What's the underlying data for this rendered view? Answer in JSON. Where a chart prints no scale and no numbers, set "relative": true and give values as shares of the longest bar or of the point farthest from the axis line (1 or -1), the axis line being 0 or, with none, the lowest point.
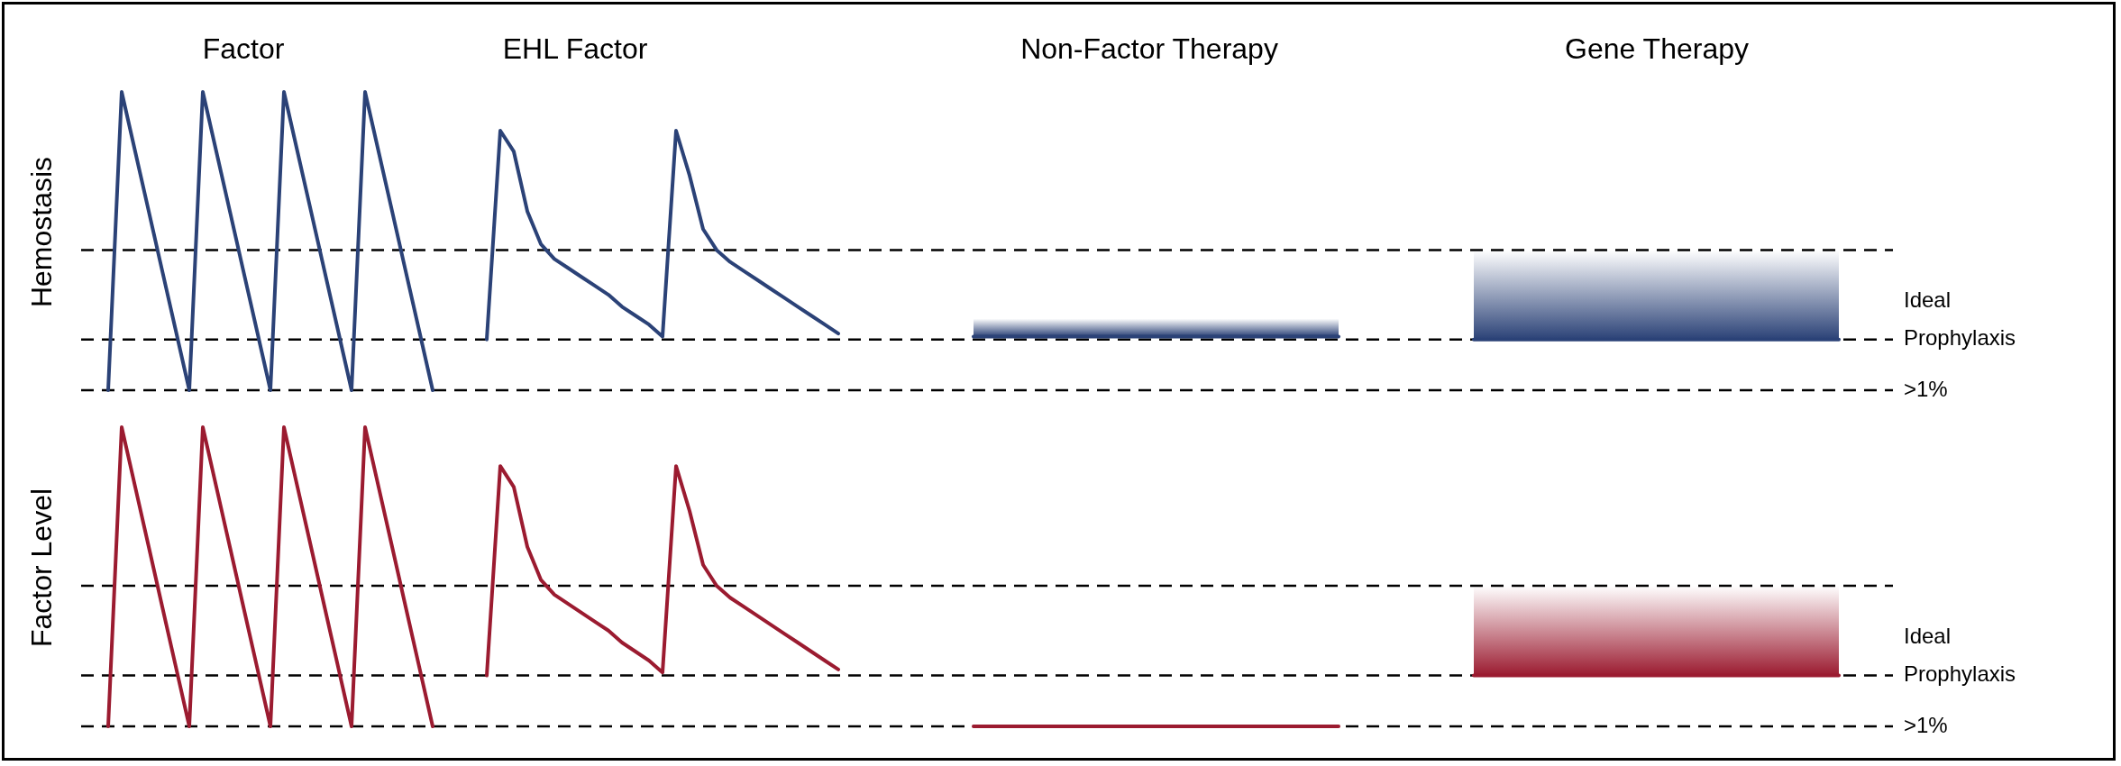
{
  "chart_data": [
    {
      "type": "line",
      "relative": true,
      "ylabel": "Hemostasis",
      "grid": false,
      "legend": false,
      "marker": "none",
      "line_style": "solid",
      "annotations": [
        "Factor",
        "EHL Factor",
        "Non-Factor Therapy",
        "Gene Therapy",
        ">1%"
      ],
      "categories": [
        null,
        null,
        null,
        null,
        null,
        null,
        null,
        null,
        null,
        null,
        null,
        null,
        null,
        null,
        null,
        null,
        null,
        null,
        null,
        null,
        null,
        null,
        null,
        null,
        null,
        null,
        null,
        null,
        null,
        null,
        null,
        null,
        null,
        null,
        null,
        null,
        null,
        null,
        null,
        null,
        null,
        null,
        null,
        null,
        null,
        null,
        null,
        null,
        null,
        null,
        null,
        null,
        null,
        null,
        null,
        null,
        null,
        null,
        null,
        null,
        null,
        null,
        null,
        null,
        null,
        null,
        null,
        null,
        null,
        null,
        null,
        null,
        null,
        null,
        null,
        null,
        null,
        null,
        null,
        null,
        null,
        null,
        null,
        null,
        null,
        null,
        null,
        null,
        null,
        null,
        null,
        null,
        null,
        null,
        null,
        null,
        null,
        null,
        null,
        null,
        null,
        null,
        null,
        null,
        null,
        null,
        null,
        null,
        null,
        null,
        null,
        null,
        null,
        null,
        null,
        null,
        null,
        null,
        null,
        null,
        null,
        null,
        null,
        null,
        null,
        null,
        null,
        null,
        null,
        null,
        null,
        null,
        null,
        null
      ],
      "ref_lines": [
        {
          "axis": "y",
          "value": 0,
          "color": "#000000",
          "line_style": "dashed"
        },
        {
          "axis": "y",
          "value": 0.17,
          "label": "Ideal Prophylaxis",
          "color": "#000000",
          "line_style": "dashed"
        },
        {
          "axis": "y",
          "value": 0.47,
          "color": "#000000",
          "line_style": "dashed"
        }
      ],
      "series": [
        {
          "color": "#2b4277",
          "values": [
            null,
            0,
            1,
            0.8,
            0.6,
            0.4,
            0.2,
            0,
            1,
            0.8,
            0.6,
            0.4,
            0.2,
            0,
            1,
            0.8,
            0.6,
            0.4,
            0.2,
            0,
            1,
            0.8,
            0.6,
            0.4,
            0.2,
            0,
            null,
            null,
            null,
            null,
            null,
            null,
            null,
            null,
            null,
            null,
            null,
            null,
            null,
            null,
            null,
            null,
            null,
            null,
            null,
            null,
            null,
            null,
            null,
            null,
            null,
            null,
            null,
            null,
            null,
            null,
            null,
            null,
            null,
            null,
            null,
            null,
            null,
            null,
            null,
            null,
            null,
            null,
            null,
            null,
            null,
            null,
            null,
            null,
            null,
            null,
            null,
            null,
            null,
            null,
            null,
            null,
            null,
            null,
            null,
            null,
            null,
            null,
            null,
            null,
            null,
            null,
            null,
            null,
            null,
            null,
            null,
            null,
            null,
            null,
            null,
            null,
            null,
            null,
            null,
            null,
            null,
            null,
            null,
            null,
            null,
            null,
            null,
            null,
            null,
            null,
            null,
            null,
            null,
            null,
            null,
            null,
            null,
            null,
            null,
            null,
            null,
            null,
            null,
            null,
            null,
            null,
            null,
            null
          ]
        },
        {
          "color": "#2b4277",
          "values": [
            null,
            null,
            null,
            null,
            null,
            null,
            null,
            null,
            null,
            null,
            null,
            null,
            null,
            null,
            null,
            null,
            null,
            null,
            null,
            null,
            null,
            null,
            null,
            null,
            null,
            null,
            null,
            null,
            null,
            0.17,
            0.87,
            0.8,
            0.6,
            0.49,
            0.44,
            0.41,
            0.38,
            0.35,
            0.32,
            0.28,
            0.25,
            0.22,
            0.18,
            0.87,
            0.72,
            0.54,
            0.47,
            0.43,
            0.4,
            0.37,
            0.34,
            0.31,
            0.28,
            0.25,
            0.22,
            0.19,
            null,
            null,
            null,
            null,
            null,
            null,
            null,
            null,
            null,
            null,
            null,
            null,
            null,
            null,
            null,
            null,
            null,
            null,
            null,
            null,
            null,
            null,
            null,
            null,
            null,
            null,
            null,
            null,
            null,
            null,
            null,
            null,
            null,
            null,
            null,
            null,
            null,
            null,
            null,
            null,
            null,
            null,
            null,
            null,
            null,
            null,
            null,
            null,
            null,
            null,
            null,
            null,
            null,
            null,
            null,
            null,
            null,
            null,
            null,
            null,
            null,
            null,
            null,
            null,
            null,
            null,
            null,
            null,
            null,
            null,
            null,
            null,
            null,
            null,
            null,
            null,
            null,
            null
          ]
        },
        {
          "color": "#2b4277",
          "values": [
            null,
            null,
            null,
            null,
            null,
            null,
            null,
            null,
            null,
            null,
            null,
            null,
            null,
            null,
            null,
            null,
            null,
            null,
            null,
            null,
            null,
            null,
            null,
            null,
            null,
            null,
            null,
            null,
            null,
            null,
            null,
            null,
            null,
            null,
            null,
            null,
            null,
            null,
            null,
            null,
            null,
            null,
            null,
            null,
            null,
            null,
            null,
            null,
            null,
            null,
            null,
            null,
            null,
            null,
            null,
            null,
            null,
            null,
            null,
            null,
            null,
            null,
            null,
            null,
            null,
            0.18,
            0.18,
            0.18,
            0.18,
            0.18,
            0.18,
            0.18,
            0.18,
            0.18,
            0.18,
            0.18,
            0.18,
            0.18,
            0.18,
            0.18,
            0.18,
            0.18,
            0.18,
            0.18,
            0.18,
            0.18,
            0.18,
            0.18,
            0.18,
            0.18,
            0.18,
            0.18,
            0.18,
            null,
            null,
            null,
            null,
            null,
            null,
            null,
            null,
            null,
            null,
            null,
            null,
            null,
            null,
            null,
            null,
            null,
            null,
            null,
            null,
            null,
            null,
            null,
            null,
            null,
            null,
            null,
            null,
            null,
            null,
            null,
            null,
            null,
            null,
            null,
            null,
            null,
            null,
            null,
            null,
            null
          ],
          "lower": [
            null,
            null,
            null,
            null,
            null,
            null,
            null,
            null,
            null,
            null,
            null,
            null,
            null,
            null,
            null,
            null,
            null,
            null,
            null,
            null,
            null,
            null,
            null,
            null,
            null,
            null,
            null,
            null,
            null,
            null,
            null,
            null,
            null,
            null,
            null,
            null,
            null,
            null,
            null,
            null,
            null,
            null,
            null,
            null,
            null,
            null,
            null,
            null,
            null,
            null,
            null,
            null,
            null,
            null,
            null,
            null,
            null,
            null,
            null,
            null,
            null,
            null,
            null,
            null,
            null,
            0.18,
            0.18,
            0.18,
            0.18,
            0.18,
            0.18,
            0.18,
            0.18,
            0.18,
            0.18,
            0.18,
            0.18,
            0.18,
            0.18,
            0.18,
            0.18,
            0.18,
            0.18,
            0.18,
            0.18,
            0.18,
            0.18,
            0.18,
            0.18,
            0.18,
            0.18,
            0.18,
            0.18,
            null,
            null,
            null,
            null,
            null,
            null,
            null,
            null,
            null,
            null,
            null,
            null,
            null,
            null,
            null,
            null,
            null,
            null,
            null,
            null,
            null,
            null,
            null,
            null,
            null,
            null,
            null,
            null,
            null,
            null,
            null,
            null,
            null,
            null,
            null,
            null,
            null,
            null,
            null,
            null,
            null
          ],
          "upper": [
            null,
            null,
            null,
            null,
            null,
            null,
            null,
            null,
            null,
            null,
            null,
            null,
            null,
            null,
            null,
            null,
            null,
            null,
            null,
            null,
            null,
            null,
            null,
            null,
            null,
            null,
            null,
            null,
            null,
            null,
            null,
            null,
            null,
            null,
            null,
            null,
            null,
            null,
            null,
            null,
            null,
            null,
            null,
            null,
            null,
            null,
            null,
            null,
            null,
            null,
            null,
            null,
            null,
            null,
            null,
            null,
            null,
            null,
            null,
            null,
            null,
            null,
            null,
            null,
            null,
            0.24,
            0.24,
            0.24,
            0.24,
            0.24,
            0.24,
            0.24,
            0.24,
            0.24,
            0.24,
            0.24,
            0.24,
            0.24,
            0.24,
            0.24,
            0.24,
            0.24,
            0.24,
            0.24,
            0.24,
            0.24,
            0.24,
            0.24,
            0.24,
            0.24,
            0.24,
            0.24,
            0.24,
            null,
            null,
            null,
            null,
            null,
            null,
            null,
            null,
            null,
            null,
            null,
            null,
            null,
            null,
            null,
            null,
            null,
            null,
            null,
            null,
            null,
            null,
            null,
            null,
            null,
            null,
            null,
            null,
            null,
            null,
            null,
            null,
            null,
            null,
            null,
            null,
            null,
            null,
            null,
            null,
            null
          ]
        },
        {
          "color": "#2b4277",
          "values": [
            null,
            null,
            null,
            null,
            null,
            null,
            null,
            null,
            null,
            null,
            null,
            null,
            null,
            null,
            null,
            null,
            null,
            null,
            null,
            null,
            null,
            null,
            null,
            null,
            null,
            null,
            null,
            null,
            null,
            null,
            null,
            null,
            null,
            null,
            null,
            null,
            null,
            null,
            null,
            null,
            null,
            null,
            null,
            null,
            null,
            null,
            null,
            null,
            null,
            null,
            null,
            null,
            null,
            null,
            null,
            null,
            null,
            null,
            null,
            null,
            null,
            null,
            null,
            null,
            null,
            null,
            null,
            null,
            null,
            null,
            null,
            null,
            null,
            null,
            null,
            null,
            null,
            null,
            null,
            null,
            null,
            null,
            null,
            null,
            null,
            null,
            null,
            null,
            null,
            null,
            null,
            null,
            null,
            null,
            null,
            null,
            null,
            null,
            null,
            null,
            null,
            null,
            0.17,
            0.17,
            0.17,
            0.17,
            0.17,
            0.17,
            0.17,
            0.17,
            0.17,
            0.17,
            0.17,
            0.17,
            0.17,
            0.17,
            0.17,
            0.17,
            0.17,
            0.17,
            0.17,
            0.17,
            0.17,
            0.17,
            0.17,
            0.17,
            0.17,
            0.17,
            0.17,
            0.17,
            null,
            null,
            null,
            null
          ],
          "lower": [
            null,
            null,
            null,
            null,
            null,
            null,
            null,
            null,
            null,
            null,
            null,
            null,
            null,
            null,
            null,
            null,
            null,
            null,
            null,
            null,
            null,
            null,
            null,
            null,
            null,
            null,
            null,
            null,
            null,
            null,
            null,
            null,
            null,
            null,
            null,
            null,
            null,
            null,
            null,
            null,
            null,
            null,
            null,
            null,
            null,
            null,
            null,
            null,
            null,
            null,
            null,
            null,
            null,
            null,
            null,
            null,
            null,
            null,
            null,
            null,
            null,
            null,
            null,
            null,
            null,
            null,
            null,
            null,
            null,
            null,
            null,
            null,
            null,
            null,
            null,
            null,
            null,
            null,
            null,
            null,
            null,
            null,
            null,
            null,
            null,
            null,
            null,
            null,
            null,
            null,
            null,
            null,
            null,
            null,
            null,
            null,
            null,
            null,
            null,
            null,
            null,
            null,
            0.17,
            0.17,
            0.17,
            0.17,
            0.17,
            0.17,
            0.17,
            0.17,
            0.17,
            0.17,
            0.17,
            0.17,
            0.17,
            0.17,
            0.17,
            0.17,
            0.17,
            0.17,
            0.17,
            0.17,
            0.17,
            0.17,
            0.17,
            0.17,
            0.17,
            0.17,
            0.17,
            0.17,
            null,
            null,
            null,
            null
          ],
          "upper": [
            null,
            null,
            null,
            null,
            null,
            null,
            null,
            null,
            null,
            null,
            null,
            null,
            null,
            null,
            null,
            null,
            null,
            null,
            null,
            null,
            null,
            null,
            null,
            null,
            null,
            null,
            null,
            null,
            null,
            null,
            null,
            null,
            null,
            null,
            null,
            null,
            null,
            null,
            null,
            null,
            null,
            null,
            null,
            null,
            null,
            null,
            null,
            null,
            null,
            null,
            null,
            null,
            null,
            null,
            null,
            null,
            null,
            null,
            null,
            null,
            null,
            null,
            null,
            null,
            null,
            null,
            null,
            null,
            null,
            null,
            null,
            null,
            null,
            null,
            null,
            null,
            null,
            null,
            null,
            null,
            null,
            null,
            null,
            null,
            null,
            null,
            null,
            null,
            null,
            null,
            null,
            null,
            null,
            null,
            null,
            null,
            null,
            null,
            null,
            null,
            null,
            null,
            0.47,
            0.47,
            0.47,
            0.47,
            0.47,
            0.47,
            0.47,
            0.47,
            0.47,
            0.47,
            0.47,
            0.47,
            0.47,
            0.47,
            0.47,
            0.47,
            0.47,
            0.47,
            0.47,
            0.47,
            0.47,
            0.47,
            0.47,
            0.47,
            0.47,
            0.47,
            0.47,
            0.47,
            null,
            null,
            null,
            null
          ]
        }
      ]
    },
    {
      "type": "line",
      "relative": true,
      "ylabel": "Factor Level",
      "grid": false,
      "legend": false,
      "marker": "none",
      "line_style": "solid",
      "annotations": [
        ">1%"
      ],
      "categories": [
        null,
        null,
        null,
        null,
        null,
        null,
        null,
        null,
        null,
        null,
        null,
        null,
        null,
        null,
        null,
        null,
        null,
        null,
        null,
        null,
        null,
        null,
        null,
        null,
        null,
        null,
        null,
        null,
        null,
        null,
        null,
        null,
        null,
        null,
        null,
        null,
        null,
        null,
        null,
        null,
        null,
        null,
        null,
        null,
        null,
        null,
        null,
        null,
        null,
        null,
        null,
        null,
        null,
        null,
        null,
        null,
        null,
        null,
        null,
        null,
        null,
        null,
        null,
        null,
        null,
        null,
        null,
        null,
        null,
        null,
        null,
        null,
        null,
        null,
        null,
        null,
        null,
        null,
        null,
        null,
        null,
        null,
        null,
        null,
        null,
        null,
        null,
        null,
        null,
        null,
        null,
        null,
        null,
        null,
        null,
        null,
        null,
        null,
        null,
        null,
        null,
        null,
        null,
        null,
        null,
        null,
        null,
        null,
        null,
        null,
        null,
        null,
        null,
        null,
        null,
        null,
        null,
        null,
        null,
        null,
        null,
        null,
        null,
        null,
        null,
        null,
        null,
        null,
        null,
        null,
        null,
        null,
        null,
        null
      ],
      "ref_lines": [
        {
          "axis": "y",
          "value": 0,
          "color": "#000000",
          "line_style": "dashed"
        },
        {
          "axis": "y",
          "value": 0.17,
          "label": "Ideal Prophylaxis",
          "color": "#000000",
          "line_style": "dashed"
        },
        {
          "axis": "y",
          "value": 0.47,
          "color": "#000000",
          "line_style": "dashed"
        }
      ],
      "series": [
        {
          "color": "#9b1b30",
          "values": [
            null,
            0,
            1,
            0.8,
            0.6,
            0.4,
            0.2,
            0,
            1,
            0.8,
            0.6,
            0.4,
            0.2,
            0,
            1,
            0.8,
            0.6,
            0.4,
            0.2,
            0,
            1,
            0.8,
            0.6,
            0.4,
            0.2,
            0,
            null,
            null,
            null,
            null,
            null,
            null,
            null,
            null,
            null,
            null,
            null,
            null,
            null,
            null,
            null,
            null,
            null,
            null,
            null,
            null,
            null,
            null,
            null,
            null,
            null,
            null,
            null,
            null,
            null,
            null,
            null,
            null,
            null,
            null,
            null,
            null,
            null,
            null,
            null,
            null,
            null,
            null,
            null,
            null,
            null,
            null,
            null,
            null,
            null,
            null,
            null,
            null,
            null,
            null,
            null,
            null,
            null,
            null,
            null,
            null,
            null,
            null,
            null,
            null,
            null,
            null,
            null,
            null,
            null,
            null,
            null,
            null,
            null,
            null,
            null,
            null,
            null,
            null,
            null,
            null,
            null,
            null,
            null,
            null,
            null,
            null,
            null,
            null,
            null,
            null,
            null,
            null,
            null,
            null,
            null,
            null,
            null,
            null,
            null,
            null,
            null,
            null,
            null,
            null,
            null,
            null,
            null,
            null
          ]
        },
        {
          "color": "#9b1b30",
          "values": [
            null,
            null,
            null,
            null,
            null,
            null,
            null,
            null,
            null,
            null,
            null,
            null,
            null,
            null,
            null,
            null,
            null,
            null,
            null,
            null,
            null,
            null,
            null,
            null,
            null,
            null,
            null,
            null,
            null,
            0.17,
            0.87,
            0.8,
            0.6,
            0.49,
            0.44,
            0.41,
            0.38,
            0.35,
            0.32,
            0.28,
            0.25,
            0.22,
            0.18,
            0.87,
            0.72,
            0.54,
            0.47,
            0.43,
            0.4,
            0.37,
            0.34,
            0.31,
            0.28,
            0.25,
            0.22,
            0.19,
            null,
            null,
            null,
            null,
            null,
            null,
            null,
            null,
            null,
            null,
            null,
            null,
            null,
            null,
            null,
            null,
            null,
            null,
            null,
            null,
            null,
            null,
            null,
            null,
            null,
            null,
            null,
            null,
            null,
            null,
            null,
            null,
            null,
            null,
            null,
            null,
            null,
            null,
            null,
            null,
            null,
            null,
            null,
            null,
            null,
            null,
            null,
            null,
            null,
            null,
            null,
            null,
            null,
            null,
            null,
            null,
            null,
            null,
            null,
            null,
            null,
            null,
            null,
            null,
            null,
            null,
            null,
            null,
            null,
            null,
            null,
            null,
            null,
            null,
            null,
            null,
            null,
            null
          ]
        },
        {
          "color": "#9b1b30",
          "values": [
            null,
            null,
            null,
            null,
            null,
            null,
            null,
            null,
            null,
            null,
            null,
            null,
            null,
            null,
            null,
            null,
            null,
            null,
            null,
            null,
            null,
            null,
            null,
            null,
            null,
            null,
            null,
            null,
            null,
            null,
            null,
            null,
            null,
            null,
            null,
            null,
            null,
            null,
            null,
            null,
            null,
            null,
            null,
            null,
            null,
            null,
            null,
            null,
            null,
            null,
            null,
            null,
            null,
            null,
            null,
            null,
            null,
            null,
            null,
            null,
            null,
            null,
            null,
            null,
            null,
            0,
            0,
            0,
            0,
            0,
            0,
            0,
            0,
            0,
            0,
            0,
            0,
            0,
            0,
            0,
            0,
            0,
            0,
            0,
            0,
            0,
            0,
            0,
            0,
            0,
            0,
            0,
            0,
            null,
            null,
            null,
            null,
            null,
            null,
            null,
            null,
            null,
            null,
            null,
            null,
            null,
            null,
            null,
            null,
            null,
            null,
            null,
            null,
            null,
            null,
            null,
            null,
            null,
            null,
            null,
            null,
            null,
            null,
            null,
            null,
            null,
            null,
            null,
            null,
            null,
            null,
            null,
            null,
            null
          ]
        },
        {
          "color": "#9b1b30",
          "values": [
            null,
            null,
            null,
            null,
            null,
            null,
            null,
            null,
            null,
            null,
            null,
            null,
            null,
            null,
            null,
            null,
            null,
            null,
            null,
            null,
            null,
            null,
            null,
            null,
            null,
            null,
            null,
            null,
            null,
            null,
            null,
            null,
            null,
            null,
            null,
            null,
            null,
            null,
            null,
            null,
            null,
            null,
            null,
            null,
            null,
            null,
            null,
            null,
            null,
            null,
            null,
            null,
            null,
            null,
            null,
            null,
            null,
            null,
            null,
            null,
            null,
            null,
            null,
            null,
            null,
            null,
            null,
            null,
            null,
            null,
            null,
            null,
            null,
            null,
            null,
            null,
            null,
            null,
            null,
            null,
            null,
            null,
            null,
            null,
            null,
            null,
            null,
            null,
            null,
            null,
            null,
            null,
            null,
            null,
            null,
            null,
            null,
            null,
            null,
            null,
            null,
            null,
            0.17,
            0.17,
            0.17,
            0.17,
            0.17,
            0.17,
            0.17,
            0.17,
            0.17,
            0.17,
            0.17,
            0.17,
            0.17,
            0.17,
            0.17,
            0.17,
            0.17,
            0.17,
            0.17,
            0.17,
            0.17,
            0.17,
            0.17,
            0.17,
            0.17,
            0.17,
            0.17,
            0.17,
            null,
            null,
            null,
            null
          ],
          "lower": [
            null,
            null,
            null,
            null,
            null,
            null,
            null,
            null,
            null,
            null,
            null,
            null,
            null,
            null,
            null,
            null,
            null,
            null,
            null,
            null,
            null,
            null,
            null,
            null,
            null,
            null,
            null,
            null,
            null,
            null,
            null,
            null,
            null,
            null,
            null,
            null,
            null,
            null,
            null,
            null,
            null,
            null,
            null,
            null,
            null,
            null,
            null,
            null,
            null,
            null,
            null,
            null,
            null,
            null,
            null,
            null,
            null,
            null,
            null,
            null,
            null,
            null,
            null,
            null,
            null,
            null,
            null,
            null,
            null,
            null,
            null,
            null,
            null,
            null,
            null,
            null,
            null,
            null,
            null,
            null,
            null,
            null,
            null,
            null,
            null,
            null,
            null,
            null,
            null,
            null,
            null,
            null,
            null,
            null,
            null,
            null,
            null,
            null,
            null,
            null,
            null,
            null,
            0.17,
            0.17,
            0.17,
            0.17,
            0.17,
            0.17,
            0.17,
            0.17,
            0.17,
            0.17,
            0.17,
            0.17,
            0.17,
            0.17,
            0.17,
            0.17,
            0.17,
            0.17,
            0.17,
            0.17,
            0.17,
            0.17,
            0.17,
            0.17,
            0.17,
            0.17,
            0.17,
            0.17,
            null,
            null,
            null,
            null
          ],
          "upper": [
            null,
            null,
            null,
            null,
            null,
            null,
            null,
            null,
            null,
            null,
            null,
            null,
            null,
            null,
            null,
            null,
            null,
            null,
            null,
            null,
            null,
            null,
            null,
            null,
            null,
            null,
            null,
            null,
            null,
            null,
            null,
            null,
            null,
            null,
            null,
            null,
            null,
            null,
            null,
            null,
            null,
            null,
            null,
            null,
            null,
            null,
            null,
            null,
            null,
            null,
            null,
            null,
            null,
            null,
            null,
            null,
            null,
            null,
            null,
            null,
            null,
            null,
            null,
            null,
            null,
            null,
            null,
            null,
            null,
            null,
            null,
            null,
            null,
            null,
            null,
            null,
            null,
            null,
            null,
            null,
            null,
            null,
            null,
            null,
            null,
            null,
            null,
            null,
            null,
            null,
            null,
            null,
            null,
            null,
            null,
            null,
            null,
            null,
            null,
            null,
            null,
            null,
            0.47,
            0.47,
            0.47,
            0.47,
            0.47,
            0.47,
            0.47,
            0.47,
            0.47,
            0.47,
            0.47,
            0.47,
            0.47,
            0.47,
            0.47,
            0.47,
            0.47,
            0.47,
            0.47,
            0.47,
            0.47,
            0.47,
            0.47,
            0.47,
            0.47,
            0.47,
            0.47,
            0.47,
            null,
            null,
            null,
            null
          ]
        }
      ]
    }
  ]
}
